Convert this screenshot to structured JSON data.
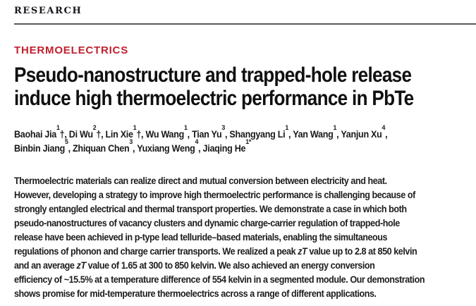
{
  "header": {
    "section_label": "RESEARCH"
  },
  "article": {
    "kicker": {
      "label": "THERMOELECTRICS",
      "color": "#c1202e"
    },
    "title_lines": [
      "Pseudo-nanostructure and trapped-hole release",
      "induce high thermoelectric performance in PbTe"
    ],
    "author_lines": [
      [
        {
          "name": "Baohai Jia",
          "sup": "1",
          "after": "†,"
        },
        {
          "name": "Di Wu",
          "sup": "2",
          "after": "†,"
        },
        {
          "name": "Lin Xie",
          "sup": "1",
          "after": "†,"
        },
        {
          "name": "Wu Wang",
          "sup": "1",
          "after": ","
        },
        {
          "name": "Tian Yu",
          "sup": "3",
          "after": ","
        },
        {
          "name": "Shangyang Li",
          "sup": "1",
          "after": ","
        },
        {
          "name": "Yan Wang",
          "sup": "1",
          "after": ","
        },
        {
          "name": "Yanjun Xu",
          "sup": "4",
          "after": ","
        }
      ],
      [
        {
          "name": "Binbin Jiang",
          "sup": "5",
          "after": ","
        },
        {
          "name": "Zhiquan Chen",
          "sup": "3",
          "after": ","
        },
        {
          "name": "Yuxiang Weng",
          "sup": "4",
          "after": ","
        },
        {
          "name": "Jiaqing He",
          "sup": "1*",
          "after": ""
        }
      ]
    ],
    "abstract_lines": [
      [
        {
          "t": "Thermoelectric materials can realize direct and mutual conversion between electricity and heat."
        }
      ],
      [
        {
          "t": "However, developing a strategy to improve high thermoelectric performance is challenging because of"
        }
      ],
      [
        {
          "t": "strongly entangled electrical and thermal transport properties. We demonstrate a case in which both"
        }
      ],
      [
        {
          "t": "pseudo-nanostructures of vacancy clusters and dynamic charge-carrier regulation of trapped-hole"
        }
      ],
      [
        {
          "t": "release have been achieved in p-type lead telluride–based materials, enabling the simultaneous"
        }
      ],
      [
        {
          "t": "regulations of phonon and charge carrier transports. We realized a peak "
        },
        {
          "t": "zT",
          "i": true
        },
        {
          "t": " value up to 2.8 at 850 kelvin"
        }
      ],
      [
        {
          "t": "and an average "
        },
        {
          "t": "zT",
          "i": true
        },
        {
          "t": " value of 1.65 at 300 to 850 kelvin. We also achieved an energy conversion"
        }
      ],
      [
        {
          "t": "efficiency of ~15.5% at a temperature difference of 554 kelvin in a segmented module. Our demonstration"
        }
      ],
      [
        {
          "t": "shows promise for mid-temperature thermoelectrics across a range of different applications."
        }
      ]
    ]
  }
}
